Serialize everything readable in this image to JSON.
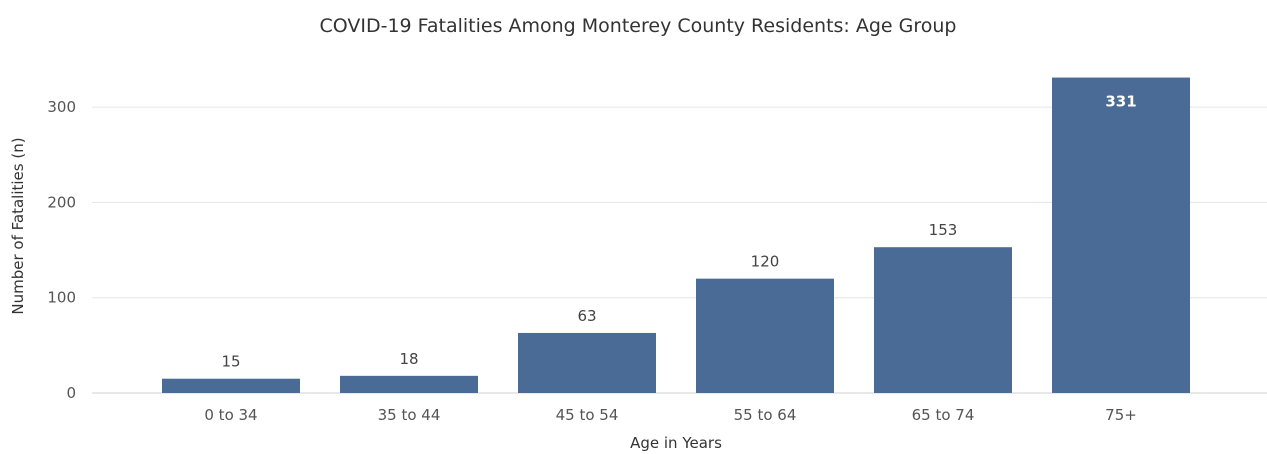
{
  "chart_data": {
    "type": "bar",
    "title": "COVID-19 Fatalities Among Monterey County Residents: Age Group",
    "xlabel": "Age in Years",
    "ylabel": "Number of Fatalities (n)",
    "categories": [
      "0 to 34",
      "35 to 44",
      "45 to 54",
      "55 to 64",
      "65 to 74",
      "75+"
    ],
    "values": [
      15,
      18,
      63,
      120,
      153,
      331
    ],
    "data_labels": [
      "15",
      "18",
      "63",
      "120",
      "153",
      "331"
    ],
    "yticks": [
      0,
      100,
      200,
      300
    ],
    "ylim": [
      0,
      331
    ],
    "grid": true,
    "legend": "none",
    "colors": {
      "bar": "#4a6b96",
      "grid": "#e6e6e6"
    }
  }
}
